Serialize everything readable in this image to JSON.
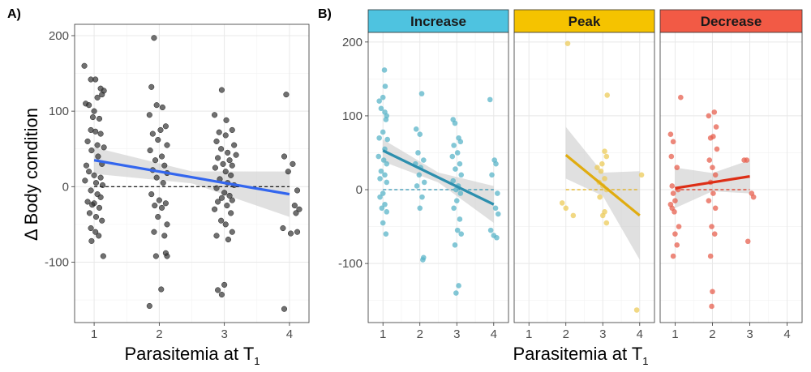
{
  "chart_data": [
    {
      "panel": "A)",
      "type": "scatter",
      "xlabel": "Parasitemia at T",
      "xlabel_subscript": "1",
      "ylabel": "Δ Body condition",
      "xlim": [
        0.7,
        4.3
      ],
      "ylim": [
        -180,
        215
      ],
      "x_ticks": [
        1,
        2,
        3,
        4
      ],
      "x_tick_labels": [
        "1",
        "2",
        "3",
        "4"
      ],
      "y_ticks": [
        -100,
        0,
        100,
        200
      ],
      "y_tick_labels": [
        "-100",
        "0",
        "100",
        "200"
      ],
      "grid": true,
      "reference_line": {
        "y": 0,
        "style": "dashed",
        "color": "#000000"
      },
      "regression": {
        "x": [
          1,
          4
        ],
        "y": [
          35,
          -10
        ],
        "band_lower": [
          17,
          -40
        ],
        "band_upper": [
          52,
          20
        ],
        "color": "#3366ee"
      },
      "point_color": "#333333",
      "points": [
        [
          0.85,
          160
        ],
        [
          0.95,
          142
        ],
        [
          1.02,
          142
        ],
        [
          1.1,
          130
        ],
        [
          1.15,
          127
        ],
        [
          0.87,
          110
        ],
        [
          0.92,
          108
        ],
        [
          1.05,
          118
        ],
        [
          1.12,
          122
        ],
        [
          1.0,
          100
        ],
        [
          0.98,
          92
        ],
        [
          1.08,
          90
        ],
        [
          0.95,
          75
        ],
        [
          1.02,
          73
        ],
        [
          1.1,
          70
        ],
        [
          0.9,
          60
        ],
        [
          1.05,
          55
        ],
        [
          1.15,
          52
        ],
        [
          0.96,
          48
        ],
        [
          1.06,
          40
        ],
        [
          1.12,
          30
        ],
        [
          0.88,
          28
        ],
        [
          0.92,
          20
        ],
        [
          1.0,
          15
        ],
        [
          1.1,
          12
        ],
        [
          0.86,
          8
        ],
        [
          1.03,
          5
        ],
        [
          1.13,
          2
        ],
        [
          0.95,
          -5
        ],
        [
          1.05,
          -10
        ],
        [
          1.1,
          -14
        ],
        [
          0.9,
          -20
        ],
        [
          1.0,
          -22
        ],
        [
          0.97,
          -24
        ],
        [
          1.08,
          -28
        ],
        [
          0.93,
          -35
        ],
        [
          1.03,
          -40
        ],
        [
          1.12,
          -45
        ],
        [
          0.95,
          -55
        ],
        [
          1.02,
          -60
        ],
        [
          1.07,
          -65
        ],
        [
          0.96,
          -72
        ],
        [
          1.14,
          -92
        ],
        [
          1.88,
          132
        ],
        [
          1.92,
          197
        ],
        [
          1.96,
          108
        ],
        [
          2.05,
          105
        ],
        [
          1.85,
          95
        ],
        [
          2.1,
          80
        ],
        [
          2.02,
          75
        ],
        [
          1.9,
          70
        ],
        [
          1.98,
          62
        ],
        [
          2.12,
          55
        ],
        [
          1.86,
          48
        ],
        [
          2.04,
          40
        ],
        [
          1.94,
          35
        ],
        [
          2.08,
          28
        ],
        [
          1.9,
          22
        ],
        [
          2.12,
          18
        ],
        [
          1.96,
          12
        ],
        [
          2.06,
          5
        ],
        [
          1.88,
          -10
        ],
        [
          2.0,
          -18
        ],
        [
          2.1,
          -22
        ],
        [
          1.93,
          -25
        ],
        [
          2.04,
          -28
        ],
        [
          1.98,
          -40
        ],
        [
          2.12,
          -50
        ],
        [
          1.92,
          -60
        ],
        [
          2.08,
          -65
        ],
        [
          2.1,
          -88
        ],
        [
          2.12,
          -92
        ],
        [
          1.95,
          -92
        ],
        [
          2.03,
          -136
        ],
        [
          1.85,
          -158
        ],
        [
          2.85,
          95
        ],
        [
          2.96,
          128
        ],
        [
          3.03,
          88
        ],
        [
          3.12,
          75
        ],
        [
          2.92,
          72
        ],
        [
          3.02,
          68
        ],
        [
          2.88,
          60
        ],
        [
          3.15,
          55
        ],
        [
          2.95,
          50
        ],
        [
          3.05,
          45
        ],
        [
          3.18,
          42
        ],
        [
          2.9,
          38
        ],
        [
          3.08,
          35
        ],
        [
          2.98,
          30
        ],
        [
          3.12,
          28
        ],
        [
          2.86,
          25
        ],
        [
          3.02,
          20
        ],
        [
          3.1,
          15
        ],
        [
          2.93,
          10
        ],
        [
          3.05,
          5
        ],
        [
          3.15,
          2
        ],
        [
          2.88,
          -2
        ],
        [
          3.0,
          -8
        ],
        [
          3.08,
          -12
        ],
        [
          2.96,
          -15
        ],
        [
          3.12,
          -18
        ],
        [
          2.9,
          -20
        ],
        [
          3.04,
          -25
        ],
        [
          2.85,
          -30
        ],
        [
          3.1,
          -35
        ],
        [
          2.95,
          -45
        ],
        [
          3.02,
          -50
        ],
        [
          3.12,
          -60
        ],
        [
          2.88,
          -65
        ],
        [
          3.06,
          -70
        ],
        [
          3.0,
          -130
        ],
        [
          2.9,
          -137
        ],
        [
          2.96,
          -143
        ],
        [
          3.95,
          122
        ],
        [
          3.92,
          40
        ],
        [
          4.05,
          30
        ],
        [
          3.98,
          20
        ],
        [
          4.12,
          -5
        ],
        [
          4.08,
          -25
        ],
        [
          4.15,
          -30
        ],
        [
          4.1,
          -35
        ],
        [
          3.9,
          -55
        ],
        [
          4.02,
          -62
        ],
        [
          4.12,
          -60
        ],
        [
          3.92,
          -162
        ]
      ]
    },
    {
      "panel": "B)",
      "type": "scatter",
      "facet": "Increase",
      "strip_color": "#4ec3e0",
      "point_color": "#5ab4c8",
      "line_color": "#2c8fae",
      "xlabel": "Parasitemia at T",
      "xlabel_subscript": "1",
      "xlim": [
        0.6,
        4.4
      ],
      "ylim": [
        -180,
        213
      ],
      "x_ticks": [
        1,
        2,
        3,
        4
      ],
      "x_tick_labels": [
        "1",
        "2",
        "3",
        "4"
      ],
      "y_ticks": [
        -100,
        0,
        100,
        200
      ],
      "y_tick_labels": [
        "-100",
        "0",
        "100",
        "200"
      ],
      "reference_line": {
        "y": 0,
        "style": "dashed"
      },
      "regression": {
        "x": [
          1,
          4
        ],
        "y": [
          53,
          -20
        ],
        "band_lower": [
          38,
          -45
        ],
        "band_upper": [
          68,
          5
        ]
      },
      "points": [
        [
          0.9,
          120
        ],
        [
          1.0,
          125
        ],
        [
          1.05,
          105
        ],
        [
          1.1,
          100
        ],
        [
          0.95,
          110
        ],
        [
          1.08,
          95
        ],
        [
          1.0,
          78
        ],
        [
          0.9,
          70
        ],
        [
          1.12,
          68
        ],
        [
          1.05,
          55
        ],
        [
          0.88,
          45
        ],
        [
          1.02,
          40
        ],
        [
          1.1,
          35
        ],
        [
          0.95,
          25
        ],
        [
          1.05,
          20
        ],
        [
          0.92,
          15
        ],
        [
          1.1,
          10
        ],
        [
          1.0,
          -5
        ],
        [
          0.92,
          -10
        ],
        [
          1.05,
          -20
        ],
        [
          0.97,
          -25
        ],
        [
          1.1,
          -30
        ],
        [
          1.0,
          -45
        ],
        [
          1.08,
          -60
        ],
        [
          1.04,
          162
        ],
        [
          1.06,
          140
        ],
        [
          1.9,
          82
        ],
        [
          2.05,
          130
        ],
        [
          2.0,
          75
        ],
        [
          1.95,
          50
        ],
        [
          2.1,
          40
        ],
        [
          1.88,
          35
        ],
        [
          2.02,
          30
        ],
        [
          1.98,
          20
        ],
        [
          2.12,
          10
        ],
        [
          1.92,
          5
        ],
        [
          2.06,
          -10
        ],
        [
          2.0,
          -25
        ],
        [
          2.1,
          -92
        ],
        [
          2.08,
          -95
        ],
        [
          2.9,
          95
        ],
        [
          2.95,
          90
        ],
        [
          3.05,
          70
        ],
        [
          3.1,
          65
        ],
        [
          2.92,
          60
        ],
        [
          3.02,
          50
        ],
        [
          2.88,
          45
        ],
        [
          3.08,
          35
        ],
        [
          2.96,
          28
        ],
        [
          3.12,
          20
        ],
        [
          2.9,
          12
        ],
        [
          3.04,
          5
        ],
        [
          2.98,
          0
        ],
        [
          3.1,
          -5
        ],
        [
          3.0,
          -15
        ],
        [
          2.92,
          -25
        ],
        [
          3.08,
          -40
        ],
        [
          3.02,
          -55
        ],
        [
          3.12,
          -60
        ],
        [
          2.95,
          -75
        ],
        [
          3.05,
          -130
        ],
        [
          2.98,
          -140
        ],
        [
          3.9,
          122
        ],
        [
          4.02,
          40
        ],
        [
          4.06,
          35
        ],
        [
          3.95,
          20
        ],
        [
          4.1,
          -5
        ],
        [
          4.05,
          -25
        ],
        [
          4.12,
          -33
        ],
        [
          3.92,
          -55
        ],
        [
          4.0,
          -62
        ],
        [
          4.08,
          -65
        ]
      ]
    },
    {
      "panel": "B)",
      "type": "scatter",
      "facet": "Peak",
      "strip_color": "#f5c300",
      "point_color": "#eccb59",
      "line_color": "#e0ac10",
      "xlim": [
        0.6,
        4.4
      ],
      "ylim": [
        -180,
        213
      ],
      "x_ticks": [
        1,
        2,
        3,
        4
      ],
      "x_tick_labels": [
        "1",
        "2",
        "3",
        "4"
      ],
      "reference_line": {
        "y": 0,
        "style": "dashed"
      },
      "regression": {
        "x": [
          2,
          4
        ],
        "y": [
          47,
          -35
        ],
        "band_lower": [
          15,
          -95
        ],
        "band_upper": [
          85,
          25
        ]
      },
      "points": [
        [
          2.05,
          198
        ],
        [
          1.9,
          -18
        ],
        [
          2.0,
          -25
        ],
        [
          2.2,
          -35
        ],
        [
          2.85,
          30
        ],
        [
          2.95,
          25
        ],
        [
          3.05,
          15
        ],
        [
          2.9,
          10
        ],
        [
          3.0,
          5
        ],
        [
          3.1,
          0
        ],
        [
          2.92,
          -10
        ],
        [
          3.05,
          -30
        ],
        [
          3.0,
          -35
        ],
        [
          3.1,
          -45
        ],
        [
          3.12,
          128
        ],
        [
          3.05,
          52
        ],
        [
          3.1,
          45
        ],
        [
          4.05,
          20
        ],
        [
          3.92,
          -163
        ],
        [
          2.98,
          35
        ]
      ]
    },
    {
      "panel": "B)",
      "type": "scatter",
      "facet": "Decrease",
      "strip_color": "#f25a45",
      "point_color": "#e7604f",
      "line_color": "#dd2e16",
      "xlim": [
        0.6,
        4.4
      ],
      "ylim": [
        -180,
        213
      ],
      "x_ticks": [
        1,
        2,
        3,
        4
      ],
      "x_tick_labels": [
        "1",
        "2",
        "3",
        "4"
      ],
      "reference_line": {
        "y": 0,
        "style": "dashed"
      },
      "regression": {
        "x": [
          1,
          3
        ],
        "y": [
          2,
          18
        ],
        "band_lower": [
          -25,
          -5
        ],
        "band_upper": [
          30,
          40
        ]
      },
      "points": [
        [
          0.88,
          75
        ],
        [
          0.95,
          65
        ],
        [
          1.15,
          125
        ],
        [
          0.9,
          45
        ],
        [
          1.05,
          30
        ],
        [
          0.92,
          5
        ],
        [
          1.08,
          0
        ],
        [
          0.95,
          -5
        ],
        [
          1.0,
          -15
        ],
        [
          0.88,
          -20
        ],
        [
          0.92,
          -25
        ],
        [
          0.98,
          -30
        ],
        [
          1.1,
          -50
        ],
        [
          1.0,
          -60
        ],
        [
          1.05,
          -75
        ],
        [
          0.95,
          -90
        ],
        [
          1.9,
          100
        ],
        [
          2.05,
          105
        ],
        [
          2.1,
          85
        ],
        [
          1.95,
          70
        ],
        [
          2.02,
          72
        ],
        [
          2.12,
          55
        ],
        [
          1.92,
          40
        ],
        [
          2.0,
          30
        ],
        [
          2.08,
          20
        ],
        [
          1.95,
          10
        ],
        [
          2.02,
          -5
        ],
        [
          1.9,
          -15
        ],
        [
          2.08,
          -25
        ],
        [
          1.98,
          -50
        ],
        [
          2.06,
          -60
        ],
        [
          1.95,
          -90
        ],
        [
          2.0,
          -138
        ],
        [
          1.98,
          -158
        ],
        [
          2.85,
          40
        ],
        [
          2.92,
          40
        ],
        [
          2.95,
          -70
        ],
        [
          3.05,
          -5
        ],
        [
          3.1,
          -10
        ]
      ]
    }
  ]
}
